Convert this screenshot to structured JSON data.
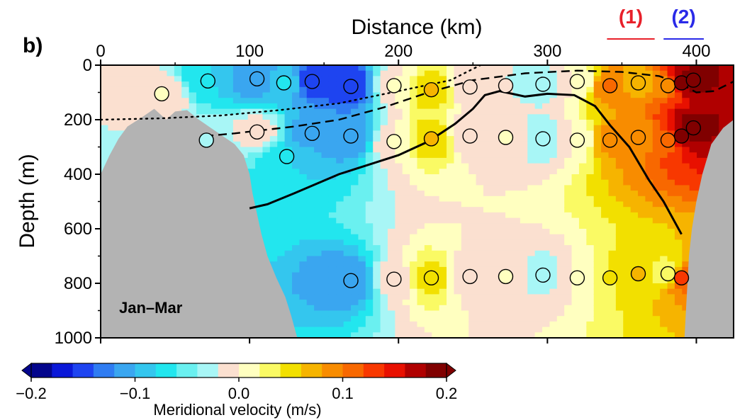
{
  "chart_data": {
    "type": "heatmap",
    "panel_label": "b)",
    "xlabel": "Distance (km)",
    "ylabel": "Depth (m)",
    "xlim": [
      0,
      425
    ],
    "ylim": [
      0,
      1000
    ],
    "x_ticks": [
      0,
      100,
      200,
      300,
      400
    ],
    "x_tick_labels": [
      "0",
      "100",
      "200",
      "300",
      "400"
    ],
    "y_ticks": [
      0,
      200,
      400,
      600,
      800,
      1000
    ],
    "y_tick_labels": [
      "0",
      "200",
      "400",
      "600",
      "800",
      "1000"
    ],
    "season_label": "Jan–Mar",
    "section_markers": [
      {
        "label": "(1)",
        "x_range": [
          340,
          372
        ],
        "color": "#e8202a"
      },
      {
        "label": "(2)",
        "x_range": [
          378,
          405
        ],
        "color": "#2a2ae8"
      }
    ],
    "colorbar": {
      "label": "Meridional velocity (m/s)",
      "min": -0.2,
      "max": 0.2,
      "step": 0.02,
      "tick_values": [
        -0.2,
        -0.1,
        0.0,
        0.1,
        0.2
      ],
      "tick_labels": [
        "−0.2",
        "−0.1",
        "0.0",
        "0.1",
        "0.2"
      ],
      "colors": [
        "#03058c",
        "#0a18d8",
        "#1e44f0",
        "#2f7cf2",
        "#3aa6f0",
        "#34c6ee",
        "#22e6ee",
        "#6af0f0",
        "#a8f6f6",
        "#fbe0d0",
        "#ffffc0",
        "#fafa64",
        "#f2e000",
        "#f6b400",
        "#f88c00",
        "#f86800",
        "#f83800",
        "#e81000",
        "#b00000",
        "#800000"
      ]
    },
    "bathymetry": {
      "left_profile": [
        [
          0,
          400
        ],
        [
          6,
          330
        ],
        [
          12,
          270
        ],
        [
          18,
          225
        ],
        [
          28,
          190
        ],
        [
          36,
          160
        ],
        [
          44,
          200
        ],
        [
          50,
          170
        ],
        [
          58,
          165
        ],
        [
          66,
          200
        ],
        [
          74,
          230
        ],
        [
          82,
          260
        ],
        [
          90,
          290
        ],
        [
          96,
          330
        ],
        [
          100,
          400
        ],
        [
          102,
          470
        ],
        [
          104,
          520
        ],
        [
          108,
          620
        ],
        [
          112,
          700
        ],
        [
          118,
          780
        ],
        [
          124,
          850
        ],
        [
          128,
          920
        ],
        [
          132,
          1000
        ]
      ],
      "right_profile": [
        [
          425,
          200
        ],
        [
          418,
          230
        ],
        [
          410,
          290
        ],
        [
          404,
          400
        ],
        [
          400,
          500
        ],
        [
          397,
          600
        ],
        [
          395,
          700
        ],
        [
          394,
          800
        ],
        [
          393,
          900
        ],
        [
          392,
          1000
        ]
      ]
    },
    "contours": [
      {
        "style": "solid",
        "points": [
          [
            100,
            525
          ],
          [
            112,
            510
          ],
          [
            130,
            470
          ],
          [
            160,
            400
          ],
          [
            200,
            330
          ],
          [
            220,
            280
          ],
          [
            238,
            215
          ],
          [
            250,
            160
          ],
          [
            258,
            110
          ],
          [
            268,
            95
          ],
          [
            285,
            115
          ],
          [
            300,
            105
          ],
          [
            318,
            110
          ],
          [
            332,
            150
          ],
          [
            342,
            220
          ],
          [
            355,
            300
          ],
          [
            368,
            420
          ],
          [
            378,
            500
          ],
          [
            390,
            620
          ]
        ]
      },
      {
        "style": "dashed",
        "points": [
          [
            70,
            260
          ],
          [
            90,
            250
          ],
          [
            130,
            225
          ],
          [
            160,
            200
          ],
          [
            190,
            155
          ],
          [
            220,
            100
          ],
          [
            250,
            55
          ],
          [
            285,
            30
          ],
          [
            320,
            20
          ],
          [
            350,
            25
          ],
          [
            375,
            40
          ],
          [
            390,
            70
          ],
          [
            400,
            100
          ],
          [
            412,
            95
          ],
          [
            425,
            60
          ]
        ]
      },
      {
        "style": "dotted",
        "points": [
          [
            0,
            200
          ],
          [
            40,
            195
          ],
          [
            80,
            185
          ],
          [
            120,
            165
          ],
          [
            160,
            140
          ],
          [
            200,
            95
          ],
          [
            235,
            55
          ],
          [
            255,
            0
          ]
        ]
      }
    ],
    "observations": [
      {
        "x": 41,
        "y": 105,
        "v": 0.0
      },
      {
        "x": 72,
        "y": 58,
        "v": -0.08
      },
      {
        "x": 71,
        "y": 275,
        "v": -0.03
      },
      {
        "x": 105,
        "y": 50,
        "v": -0.12
      },
      {
        "x": 105,
        "y": 245,
        "v": -0.01
      },
      {
        "x": 123,
        "y": 65,
        "v": -0.08
      },
      {
        "x": 125,
        "y": 335,
        "v": -0.08
      },
      {
        "x": 142,
        "y": 60,
        "v": -0.15
      },
      {
        "x": 142,
        "y": 250,
        "v": -0.11
      },
      {
        "x": 168,
        "y": 78,
        "v": -0.16
      },
      {
        "x": 168,
        "y": 260,
        "v": -0.12
      },
      {
        "x": 168,
        "y": 790,
        "v": -0.12
      },
      {
        "x": 197,
        "y": 75,
        "v": 0.0
      },
      {
        "x": 197,
        "y": 280,
        "v": 0.0
      },
      {
        "x": 197,
        "y": 785,
        "v": -0.01
      },
      {
        "x": 222,
        "y": 90,
        "v": 0.06
      },
      {
        "x": 222,
        "y": 270,
        "v": 0.06
      },
      {
        "x": 222,
        "y": 780,
        "v": 0.05
      },
      {
        "x": 248,
        "y": 80,
        "v": -0.02
      },
      {
        "x": 248,
        "y": 260,
        "v": -0.02
      },
      {
        "x": 248,
        "y": 775,
        "v": -0.02
      },
      {
        "x": 272,
        "y": 75,
        "v": -0.02
      },
      {
        "x": 272,
        "y": 265,
        "v": 0.0
      },
      {
        "x": 272,
        "y": 775,
        "v": 0.0
      },
      {
        "x": 297,
        "y": 70,
        "v": -0.03
      },
      {
        "x": 297,
        "y": 270,
        "v": -0.04
      },
      {
        "x": 297,
        "y": 770,
        "v": -0.03
      },
      {
        "x": 320,
        "y": 60,
        "v": 0.0
      },
      {
        "x": 320,
        "y": 275,
        "v": 0.0
      },
      {
        "x": 320,
        "y": 780,
        "v": 0.0
      },
      {
        "x": 342,
        "y": 75,
        "v": 0.1
      },
      {
        "x": 342,
        "y": 275,
        "v": 0.09
      },
      {
        "x": 342,
        "y": 780,
        "v": 0.04
      },
      {
        "x": 361,
        "y": 65,
        "v": 0.07
      },
      {
        "x": 361,
        "y": 265,
        "v": 0.08
      },
      {
        "x": 361,
        "y": 765,
        "v": 0.06
      },
      {
        "x": 381,
        "y": 75,
        "v": 0.09
      },
      {
        "x": 381,
        "y": 275,
        "v": 0.11
      },
      {
        "x": 381,
        "y": 765,
        "v": 0.02
      },
      {
        "x": 390,
        "y": 65,
        "v": 0.18
      },
      {
        "x": 390,
        "y": 260,
        "v": 0.18
      },
      {
        "x": 390,
        "y": 780,
        "v": 0.12
      },
      {
        "x": 398,
        "y": 55,
        "v": 0.19
      },
      {
        "x": 398,
        "y": 230,
        "v": 0.19
      }
    ]
  }
}
